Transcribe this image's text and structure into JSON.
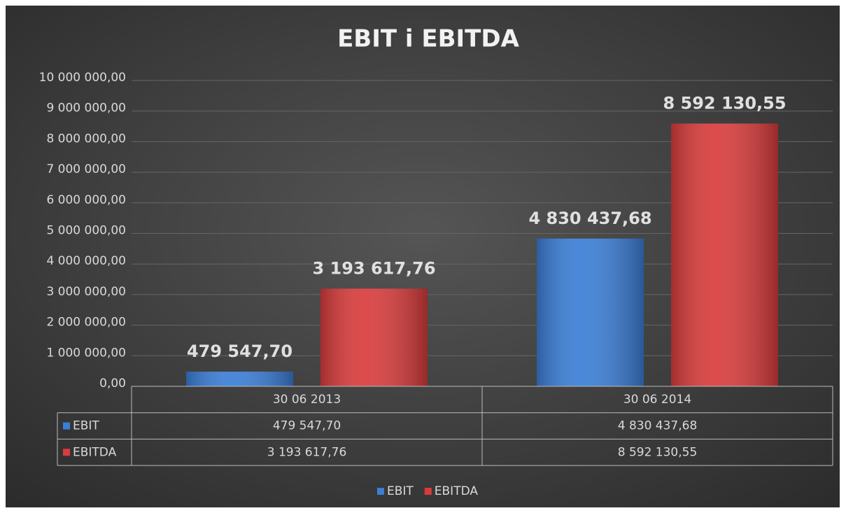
{
  "chart_data": {
    "type": "bar",
    "title": "EBIT i EBITDA",
    "categories": [
      "30 06 2013",
      "30 06 2014"
    ],
    "series": [
      {
        "name": "EBIT",
        "color": "#3b7ed6",
        "values": [
          479547.7,
          4830437.68
        ],
        "value_labels": [
          "479 547,70",
          "4 830 437,68"
        ]
      },
      {
        "name": "EBITDA",
        "color": "#d93c3c",
        "values": [
          3193617.76,
          8592130.55
        ],
        "value_labels": [
          "3 193 617,76",
          "8 592 130,55"
        ]
      }
    ],
    "ylim": [
      0,
      10000000
    ],
    "yticks": [
      {
        "value": 0,
        "label": "0,00"
      },
      {
        "value": 1000000,
        "label": "1 000 000,00"
      },
      {
        "value": 2000000,
        "label": "2 000 000,00"
      },
      {
        "value": 3000000,
        "label": "3 000 000,00"
      },
      {
        "value": 4000000,
        "label": "4 000 000,00"
      },
      {
        "value": 5000000,
        "label": "5 000 000,00"
      },
      {
        "value": 6000000,
        "label": "6 000 000,00"
      },
      {
        "value": 7000000,
        "label": "7 000 000,00"
      },
      {
        "value": 8000000,
        "label": "8 000 000,00"
      },
      {
        "value": 9000000,
        "label": "9 000 000,00"
      },
      {
        "value": 10000000,
        "label": "10 000 000,00"
      }
    ],
    "grid": true,
    "legend": "bottom",
    "data_table": true
  }
}
